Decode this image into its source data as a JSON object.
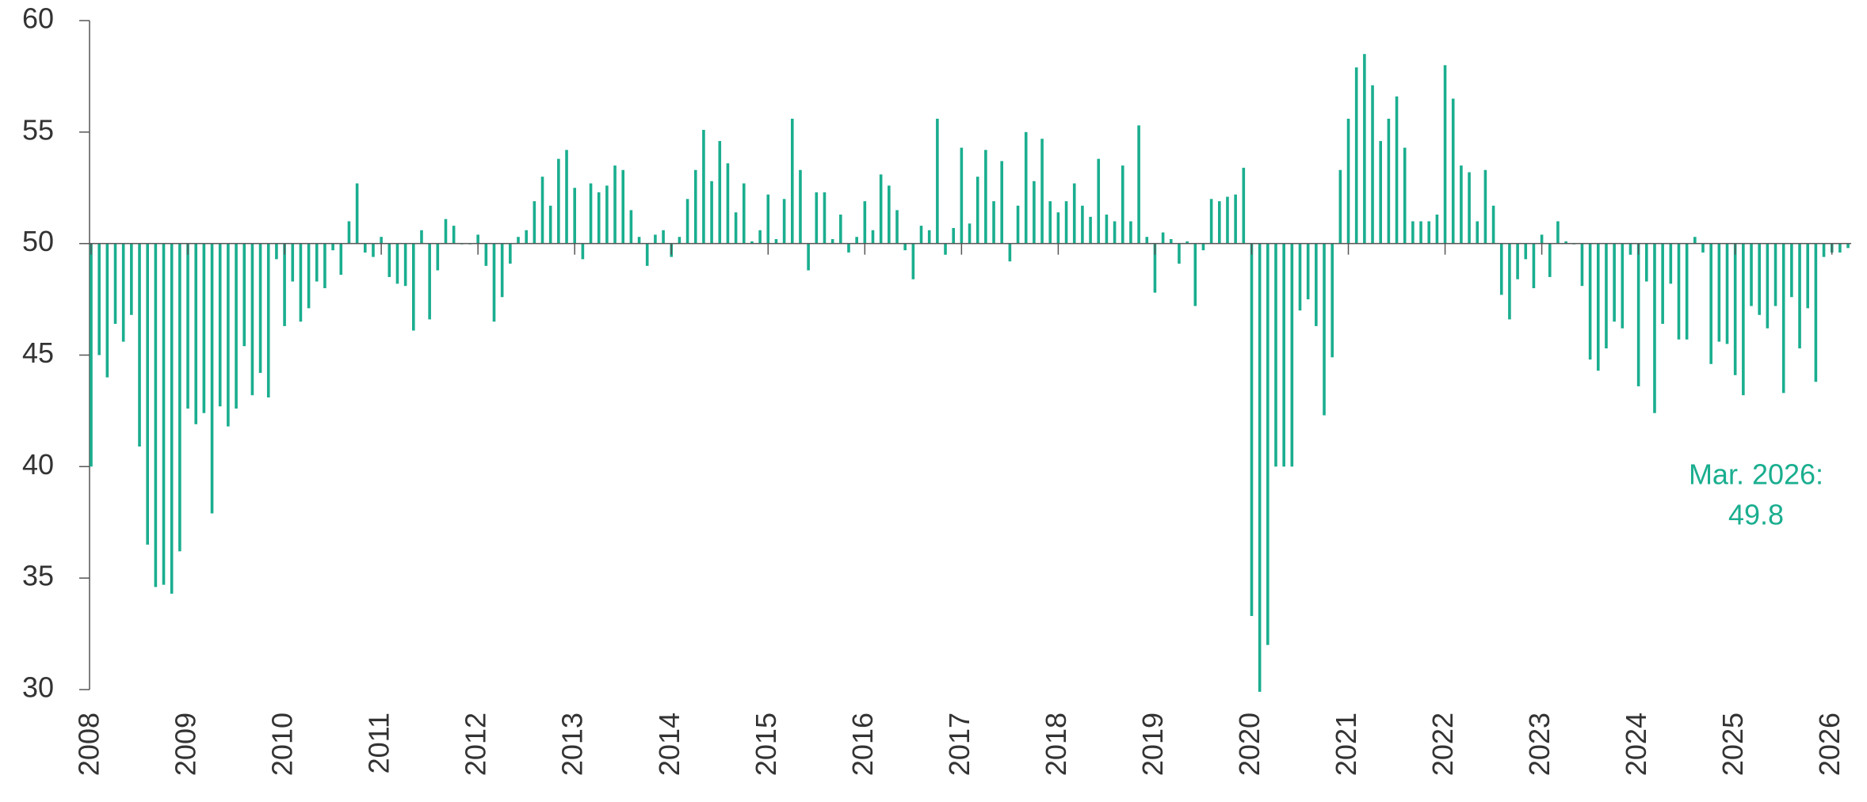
{
  "chart_data": {
    "type": "bar",
    "color": "#1aae8f",
    "baseline": 50,
    "ylim": [
      30,
      60
    ],
    "yticks": [
      30,
      35,
      40,
      45,
      50,
      55,
      60
    ],
    "annotation": [
      "Mar. 2026:",
      "49.8"
    ],
    "categories": [
      "2008",
      null,
      null,
      null,
      null,
      null,
      null,
      null,
      null,
      null,
      null,
      null,
      "2009",
      null,
      null,
      null,
      null,
      null,
      null,
      null,
      null,
      null,
      null,
      null,
      "2010",
      null,
      null,
      null,
      null,
      null,
      null,
      null,
      null,
      null,
      null,
      null,
      "2011",
      null,
      null,
      null,
      null,
      null,
      null,
      null,
      null,
      null,
      null,
      null,
      "2012",
      null,
      null,
      null,
      null,
      null,
      null,
      null,
      null,
      null,
      null,
      null,
      "2013",
      null,
      null,
      null,
      null,
      null,
      null,
      null,
      null,
      null,
      null,
      null,
      "2014",
      null,
      null,
      null,
      null,
      null,
      null,
      null,
      null,
      null,
      null,
      null,
      "2015",
      null,
      null,
      null,
      null,
      null,
      null,
      null,
      null,
      null,
      null,
      null,
      "2016",
      null,
      null,
      null,
      null,
      null,
      null,
      null,
      null,
      null,
      null,
      null,
      "2017",
      null,
      null,
      null,
      null,
      null,
      null,
      null,
      null,
      null,
      null,
      null,
      "2018",
      null,
      null,
      null,
      null,
      null,
      null,
      null,
      null,
      null,
      null,
      null,
      "2019",
      null,
      null,
      null,
      null,
      null,
      null,
      null,
      null,
      null,
      null,
      null,
      "2020",
      null,
      null,
      null,
      null,
      null,
      null,
      null,
      null,
      null,
      null,
      null,
      "2021",
      null,
      null,
      null,
      null,
      null,
      null,
      null,
      null,
      null,
      null,
      null,
      "2022",
      null,
      null,
      null,
      null,
      null,
      null,
      null,
      null,
      null,
      null,
      null,
      "2023",
      null,
      null,
      null,
      null,
      null,
      null,
      null,
      null,
      null,
      null,
      null,
      "2024",
      null,
      null,
      null,
      null,
      null,
      null,
      null,
      null,
      null,
      null,
      null,
      "2025",
      null,
      null,
      null,
      null,
      null,
      null,
      null,
      null,
      null,
      null,
      null,
      "2026",
      null,
      null
    ],
    "values": [
      40,
      45,
      44,
      46.4,
      45.6,
      46.8,
      40.9,
      36.5,
      34.6,
      34.7,
      34.3,
      36.2,
      42.6,
      41.9,
      42.4,
      37.9,
      42.7,
      41.8,
      42.6,
      45.4,
      43.2,
      44.2,
      43.1,
      49.3,
      46.3,
      48.3,
      46.5,
      47.1,
      48.3,
      48,
      49.7,
      48.6,
      51,
      52.7,
      49.6,
      49.4,
      50.3,
      48.5,
      48.2,
      48.1,
      46.1,
      50.6,
      46.6,
      48.8,
      51.1,
      50.8,
      50,
      50,
      50.4,
      49,
      46.5,
      47.6,
      49.1,
      50.3,
      50.6,
      51.9,
      53,
      51.7,
      53.8,
      54.2,
      52.5,
      49.3,
      52.7,
      52.3,
      52.6,
      53.5,
      53.3,
      51.5,
      50.3,
      49,
      50.4,
      50.6,
      49.4,
      50.3,
      52,
      53.3,
      55.1,
      52.8,
      54.6,
      53.6,
      51.4,
      52.7,
      50.1,
      50.6,
      52.2,
      50.2,
      52,
      55.6,
      53.3,
      48.8,
      52.3,
      52.3,
      50.2,
      51.3,
      49.6,
      50.3,
      51.9,
      50.6,
      53.1,
      52.6,
      51.5,
      49.7,
      48.4,
      50.8,
      50.6,
      55.6,
      49.5,
      50.7,
      54.3,
      50.9,
      53,
      54.2,
      51.9,
      53.7,
      49.2,
      51.7,
      55,
      52.8,
      54.7,
      51.9,
      51.4,
      51.9,
      52.7,
      51.7,
      51.2,
      53.8,
      51.3,
      51,
      53.5,
      51,
      55.3,
      50.3,
      47.8,
      50.5,
      50.2,
      49.1,
      50.1,
      47.2,
      49.7,
      52,
      51.9,
      52.1,
      52.2,
      53.4,
      33.3,
      29.9,
      32,
      40,
      40,
      40,
      47,
      47.5,
      46.3,
      42.3,
      44.9,
      53.3,
      55.6,
      57.9,
      58.5,
      57.1,
      54.6,
      55.6,
      56.6,
      54.3,
      51,
      51,
      51,
      51.3,
      58,
      56.5,
      53.5,
      53.2,
      51,
      53.3,
      51.7,
      47.7,
      46.6,
      48.4,
      49.3,
      48,
      50.4,
      48.5,
      51,
      50.1,
      50,
      48.1,
      44.8,
      44.3,
      45.3,
      46.5,
      46.2,
      49.5,
      43.6,
      48.3,
      42.4,
      46.4,
      48.2,
      45.7,
      45.7,
      50.3,
      49.6,
      44.6,
      45.6,
      45.5,
      44.1,
      43.2,
      47.2,
      46.8,
      46.2,
      47.2,
      43.3,
      47.6,
      45.3,
      47.1,
      43.8,
      49.4,
      49.6,
      49.6,
      49.8
    ]
  }
}
